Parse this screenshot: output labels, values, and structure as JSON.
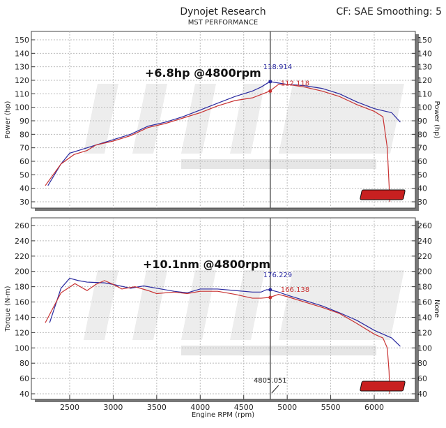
{
  "header": {
    "title": "Dynojet Research",
    "subtitle": "MST PERFORMANCE",
    "info": "CF: SAE Smoothing: 5"
  },
  "watermark": {
    "text": "MST",
    "sub": "PERFORMANCE",
    "logo": "Dynojet"
  },
  "colors": {
    "run1": "#2a2aa0",
    "run2": "#c83232",
    "cursor": "#555555"
  },
  "chart_data": [
    {
      "type": "line",
      "ylabel": "Power (hp)",
      "ylabel_right": "Power (hp)",
      "ylim": [
        30,
        150
      ],
      "yticks": [
        30,
        40,
        50,
        60,
        70,
        80,
        90,
        100,
        110,
        120,
        130,
        140,
        150
      ],
      "xlim": [
        2130,
        6530
      ],
      "grid": true,
      "annotation": "+6.8hp @4800rpm",
      "cursor_rpm": 4805.051,
      "cursor_labels": [
        "118.914",
        "112.118"
      ],
      "series": [
        {
          "color": "#2a2aa0",
          "points": [
            [
              2250,
              42
            ],
            [
              2400,
              58
            ],
            [
              2500,
              66
            ],
            [
              2700,
              70
            ],
            [
              3000,
              76
            ],
            [
              3200,
              80
            ],
            [
              3400,
              86
            ],
            [
              3600,
              89
            ],
            [
              3800,
              93
            ],
            [
              4000,
              98
            ],
            [
              4200,
              103
            ],
            [
              4400,
              108
            ],
            [
              4600,
              112
            ],
            [
              4700,
              115
            ],
            [
              4800,
              119
            ],
            [
              4900,
              118
            ],
            [
              5000,
              117
            ],
            [
              5200,
              116
            ],
            [
              5400,
              114
            ],
            [
              5600,
              110
            ],
            [
              5800,
              104
            ],
            [
              6000,
              99
            ],
            [
              6200,
              96
            ],
            [
              6300,
              89
            ]
          ]
        },
        {
          "color": "#c83232",
          "points": [
            [
              2220,
              42
            ],
            [
              2400,
              58
            ],
            [
              2550,
              65
            ],
            [
              2700,
              68
            ],
            [
              2800,
              72
            ],
            [
              3000,
              75
            ],
            [
              3200,
              79
            ],
            [
              3400,
              85
            ],
            [
              3600,
              88
            ],
            [
              3800,
              92
            ],
            [
              4000,
              96
            ],
            [
              4200,
              101
            ],
            [
              4400,
              105
            ],
            [
              4600,
              107
            ],
            [
              4800,
              112
            ],
            [
              4900,
              117
            ],
            [
              5000,
              117
            ],
            [
              5200,
              115
            ],
            [
              5400,
              112
            ],
            [
              5600,
              108
            ],
            [
              5800,
              102
            ],
            [
              6000,
              97
            ],
            [
              6100,
              93
            ],
            [
              6150,
              70
            ],
            [
              6180,
              30
            ]
          ]
        }
      ]
    },
    {
      "type": "line",
      "ylabel": "Torque (N-m)",
      "ylabel_right": "None",
      "xlabel": "Engine RPM (rpm)",
      "ylim": [
        40,
        260
      ],
      "yticks": [
        40,
        60,
        80,
        100,
        120,
        140,
        160,
        180,
        200,
        220,
        240,
        260
      ],
      "xlim": [
        2130,
        6530
      ],
      "xticks": [
        2500,
        3000,
        3500,
        4000,
        4500,
        5000,
        5500,
        6000
      ],
      "grid": true,
      "annotation": "+10.1nm @4800rpm",
      "cursor_rpm": 4805.051,
      "cursor_readout": "4805.051",
      "cursor_labels": [
        "176.229",
        "166.138"
      ],
      "series": [
        {
          "color": "#2a2aa0",
          "points": [
            [
              2270,
              133
            ],
            [
              2400,
              178
            ],
            [
              2500,
              191
            ],
            [
              2600,
              188
            ],
            [
              2700,
              186
            ],
            [
              2900,
              185
            ],
            [
              3000,
              183
            ],
            [
              3200,
              178
            ],
            [
              3350,
              181
            ],
            [
              3500,
              178
            ],
            [
              3700,
              174
            ],
            [
              3850,
              172
            ],
            [
              4000,
              177
            ],
            [
              4200,
              177
            ],
            [
              4400,
              175
            ],
            [
              4600,
              173
            ],
            [
              4700,
              173
            ],
            [
              4760,
              176
            ],
            [
              4800,
              176
            ],
            [
              4900,
              173
            ],
            [
              5000,
              169
            ],
            [
              5200,
              162
            ],
            [
              5400,
              155
            ],
            [
              5600,
              146
            ],
            [
              5800,
              136
            ],
            [
              6000,
              123
            ],
            [
              6200,
              113
            ],
            [
              6300,
              102
            ]
          ]
        },
        {
          "color": "#c83232",
          "points": [
            [
              2220,
              133
            ],
            [
              2400,
              172
            ],
            [
              2560,
              184
            ],
            [
              2700,
              175
            ],
            [
              2800,
              183
            ],
            [
              2900,
              188
            ],
            [
              3000,
              183
            ],
            [
              3100,
              177
            ],
            [
              3250,
              180
            ],
            [
              3400,
              175
            ],
            [
              3500,
              171
            ],
            [
              3700,
              173
            ],
            [
              3850,
              171
            ],
            [
              4000,
              174
            ],
            [
              4200,
              174
            ],
            [
              4400,
              170
            ],
            [
              4600,
              165
            ],
            [
              4700,
              165
            ],
            [
              4800,
              166
            ],
            [
              4900,
              170
            ],
            [
              5000,
              167
            ],
            [
              5200,
              160
            ],
            [
              5400,
              153
            ],
            [
              5600,
              145
            ],
            [
              5800,
              132
            ],
            [
              6000,
              118
            ],
            [
              6100,
              113
            ],
            [
              6150,
              100
            ],
            [
              6170,
              70
            ],
            [
              6180,
              40
            ]
          ]
        }
      ]
    }
  ]
}
